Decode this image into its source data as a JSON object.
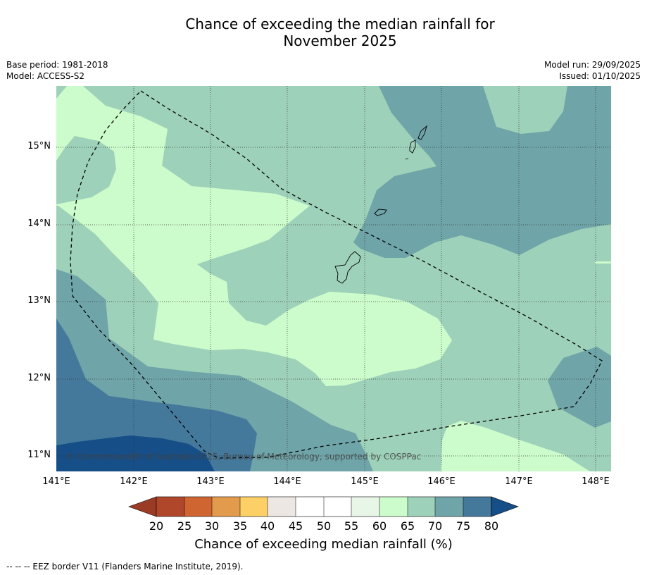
{
  "title_line1": "Chance of exceeding the median rainfall for",
  "title_line2": "November 2025",
  "base_period": "Base period: 1981-2018",
  "model": "Model: ACCESS-S2",
  "model_run": "Model run: 29/09/2025",
  "issued": "Issued: 01/10/2025",
  "copyright": "© Commonwealth of Australia 2025, Bureau of Meteorology, supported by COSPPac",
  "lat_labels": [
    "15°N",
    "14°N",
    "13°N",
    "12°N",
    "11°N"
  ],
  "lon_labels": [
    "141°E",
    "142°E",
    "143°E",
    "144°E",
    "145°E",
    "146°E",
    "147°E",
    "148°E"
  ],
  "colorbar": {
    "ticks": [
      "20",
      "25",
      "30",
      "35",
      "40",
      "45",
      "50",
      "55",
      "60",
      "65",
      "70",
      "75",
      "80"
    ],
    "colors": [
      "#b0472a",
      "#cf6531",
      "#e29a4c",
      "#fccf67",
      "#ece7e2",
      "#ffffff",
      "#ffffff",
      "#e8f6e8",
      "#ccfccb",
      "#9ed1b9",
      "#6fa4a8",
      "#44799c"
    ],
    "under_color": "#9c3b25",
    "over_color": "#164e87",
    "label": "Chance of exceeding median rainfall (%)"
  },
  "legend_footer": "--  --  -- EEZ border V11 (Flanders Marine Institute, 2019).",
  "colors": {
    "band_80": "#164e87",
    "band_75_80": "#44799c",
    "band_70_75": "#6fa4a8",
    "band_65_70": "#9ed1b9",
    "band_60_65": "#ccfccb"
  }
}
